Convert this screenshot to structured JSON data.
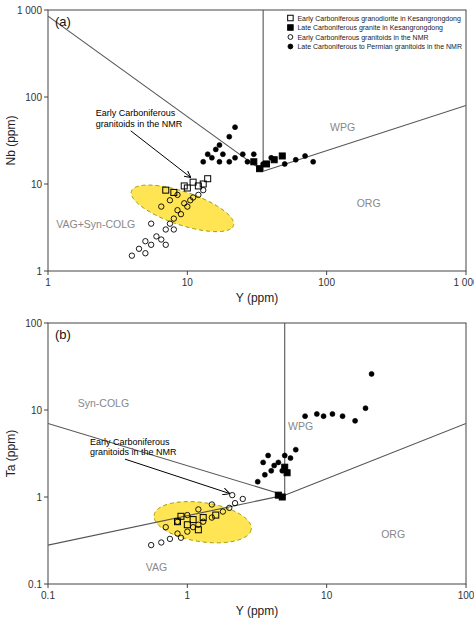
{
  "chart_data": [
    {
      "type": "scatter",
      "title": "(a)",
      "x_label": "Y (ppm)",
      "y_label": "Nb (ppm)",
      "log": true,
      "xlim": [
        1,
        1000
      ],
      "ylim": [
        1,
        1000
      ],
      "xticks": [
        1,
        10,
        100,
        {
          "value": 1000,
          "label": "1 000"
        }
      ],
      "yticks": [
        1,
        10,
        100,
        {
          "value": 1000,
          "label": "1 000"
        }
      ],
      "legend": "upper right",
      "series": [
        {
          "name": "Early Carboniferous granodiorite in Kesangrongdong",
          "marker": "square-open",
          "color": "black",
          "x": [
            7.0,
            8.0,
            9.5,
            10.0,
            11.0,
            12.0,
            13.0,
            14.0
          ],
          "values": [
            8.5,
            8.0,
            9.5,
            9.0,
            10.5,
            9.5,
            10.0,
            11.5
          ]
        },
        {
          "name": "Late Carboniferous granite in Kesangrongdong",
          "marker": "square",
          "color": "black",
          "x": [
            30,
            33,
            37,
            42,
            48
          ],
          "values": [
            18,
            15,
            17,
            19,
            21
          ]
        },
        {
          "name": "Early Carboniferous granitoids in the NMR",
          "marker": "circle-open",
          "color": "black",
          "x": [
            4.0,
            4.5,
            5.0,
            5.0,
            5.5,
            6.0,
            6.5,
            7.0,
            7.0,
            7.5,
            8.0,
            8.0,
            8.5,
            9.0,
            9.5,
            10.0,
            10.5,
            11.0,
            12.0,
            13.0,
            6.5,
            7.5,
            5.5,
            8.5
          ],
          "values": [
            1.5,
            1.8,
            2.2,
            1.6,
            2.0,
            2.5,
            2.3,
            3.0,
            2.0,
            3.5,
            4.0,
            3.0,
            5.0,
            4.5,
            6.0,
            5.5,
            6.5,
            7.0,
            7.5,
            8.5,
            5.5,
            6.5,
            3.5,
            7.5
          ]
        },
        {
          "name": "Late Carboniferous to Permian granitoids in the NMR",
          "marker": "circle",
          "color": "black",
          "x": [
            13,
            14,
            15,
            16,
            17,
            18,
            20,
            22,
            25,
            27,
            30,
            35,
            40,
            50,
            60,
            70,
            80,
            20,
            22,
            17
          ],
          "values": [
            18,
            22,
            20,
            25,
            18,
            22,
            18,
            20,
            22,
            18,
            22,
            17,
            20,
            17,
            19,
            21,
            18,
            35,
            45,
            28
          ]
        }
      ],
      "boundaries": [
        {
          "color": "#555555",
          "x": [
            1,
            35
          ],
          "y": [
            850,
            14
          ]
        },
        {
          "color": "#555555",
          "x": [
            35,
            35
          ],
          "y": [
            14,
            1000
          ]
        },
        {
          "color": "#555555",
          "x": [
            35,
            1000
          ],
          "y": [
            14,
            80
          ]
        }
      ],
      "ellipse": {
        "cx_log": 0.965,
        "cy_log": 0.72,
        "a_log": 0.42,
        "b_log": 0.175,
        "angle_deg": -32,
        "color": "#FFE135",
        "edge_color": "#999900"
      },
      "annotations": [
        {
          "text": "WPG",
          "x": 130,
          "y": 45,
          "color": "#888888"
        },
        {
          "text": "ORG",
          "x": 200,
          "y": 6,
          "color": "#888888"
        },
        {
          "text": "VAG+Syn-COLG",
          "x": 2.2,
          "y": 3.5,
          "color": "#888888"
        },
        {
          "text": "Early Carboniferous\ngranitoids in the NMR",
          "x": 2.2,
          "y": 60,
          "arrow_to": [
            10.5,
            12
          ],
          "color": "black"
        }
      ]
    },
    {
      "type": "scatter",
      "title": "(b)",
      "x_label": "Y (ppm)",
      "y_label": "Ta (ppm)",
      "log": true,
      "xlim": [
        0.1,
        100
      ],
      "ylim": [
        0.1,
        100
      ],
      "xticks": [
        0.1,
        1,
        10,
        100
      ],
      "yticks": [
        0.1,
        1,
        10,
        100
      ],
      "series": [
        {
          "marker": "square-open",
          "color": "black",
          "x": [
            0.85,
            1.0,
            1.1,
            1.2,
            1.3,
            1.6,
            0.9
          ],
          "values": [
            0.52,
            0.48,
            0.55,
            0.42,
            0.58,
            0.62,
            0.6
          ]
        },
        {
          "marker": "square",
          "color": "black",
          "x": [
            4.5,
            4.8,
            5.0,
            5.2
          ],
          "values": [
            1.05,
            1.0,
            2.2,
            1.9
          ]
        },
        {
          "marker": "circle-open",
          "color": "black",
          "x": [
            0.55,
            0.65,
            0.75,
            0.85,
            0.9,
            1.0,
            1.1,
            1.2,
            1.3,
            1.5,
            1.8,
            2.0,
            2.2,
            2.5,
            1.0,
            1.2,
            0.85,
            1.5,
            2.1,
            0.7
          ],
          "values": [
            0.28,
            0.3,
            0.33,
            0.38,
            0.34,
            0.4,
            0.45,
            0.48,
            0.52,
            0.58,
            0.68,
            0.75,
            0.85,
            0.95,
            0.62,
            0.72,
            0.52,
            0.82,
            1.05,
            0.45
          ]
        },
        {
          "marker": "circle",
          "color": "black",
          "x": [
            3.5,
            3.8,
            4.0,
            4.2,
            4.5,
            5.0,
            5.5,
            6.0,
            7.0,
            8.5,
            9.5,
            11.0,
            13.0,
            16.0,
            19.0,
            21.0,
            3.2,
            3.6,
            4.8
          ],
          "values": [
            2.5,
            3.0,
            2.0,
            2.3,
            2.5,
            3.0,
            2.8,
            3.5,
            8.5,
            9.0,
            8.5,
            9.0,
            8.5,
            7.5,
            10.5,
            26.0,
            1.5,
            1.8,
            2.0
          ]
        }
      ],
      "boundaries": [
        {
          "color": "#555555",
          "x": [
            5.0,
            5.0
          ],
          "y": [
            1.05,
            100
          ]
        },
        {
          "color": "#555555",
          "x": [
            0.1,
            5.0
          ],
          "y": [
            0.28,
            1.05
          ]
        },
        {
          "color": "#555555",
          "x": [
            0.1,
            5.0
          ],
          "y": [
            7.0,
            1.05
          ]
        },
        {
          "color": "#555555",
          "x": [
            5.0,
            100
          ],
          "y": [
            1.05,
            7.0
          ]
        }
      ],
      "ellipse": {
        "cx_log": 0.11,
        "cy_log": -0.29,
        "a_log": 0.36,
        "b_log": 0.22,
        "angle_deg": -18,
        "color": "#FFE135",
        "edge_color": "#999900"
      },
      "annotations": [
        {
          "text": "WPG",
          "x": 6.5,
          "y": 6.5,
          "color": "#888888"
        },
        {
          "text": "ORG",
          "x": 30,
          "y": 0.38,
          "color": "#888888"
        },
        {
          "text": "Syn-COLG",
          "x": 0.25,
          "y": 12,
          "color": "#888888"
        },
        {
          "text": "VAG",
          "x": 0.6,
          "y": 0.155,
          "color": "#888888"
        },
        {
          "text": "Early Carboniferous\ngranitoids in the NMR",
          "x": 0.2,
          "y": 4.0,
          "arrow_to": [
            2.0,
            1.1
          ],
          "color": "black"
        }
      ]
    }
  ]
}
